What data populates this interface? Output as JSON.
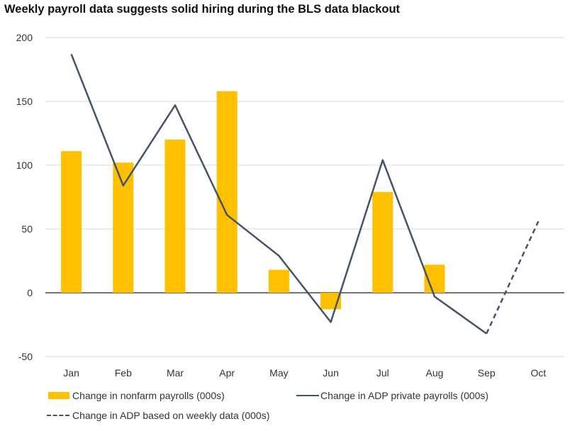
{
  "chart_data": {
    "type": "bar+line",
    "title": "Weekly payroll data suggests solid hiring during the BLS data blackout",
    "categories": [
      "Jan",
      "Feb",
      "Mar",
      "Apr",
      "May",
      "Jun",
      "Jul",
      "Aug",
      "Sep",
      "Oct"
    ],
    "ylim": [
      -50,
      200
    ],
    "yticks": [
      -50,
      0,
      50,
      100,
      150,
      200
    ],
    "grid": true,
    "legend_placement": "bottom",
    "series": [
      {
        "name": "Change in nonfarm payrolls (000s)",
        "type": "bar",
        "color": "#FFC000",
        "values": [
          111,
          102,
          120,
          158,
          18,
          -13,
          79,
          22,
          null,
          null
        ]
      },
      {
        "name": "Change in ADP private payrolls (000s)",
        "type": "line",
        "color": "#44546A",
        "values": [
          187,
          84,
          147,
          61,
          29,
          -23,
          104,
          -3,
          -32,
          null
        ]
      },
      {
        "name": "Change in ADP based on weekly data (000s)",
        "type": "dashed-line",
        "color": "#44546A",
        "values": [
          null,
          null,
          null,
          null,
          null,
          null,
          null,
          null,
          -32,
          56
        ]
      }
    ]
  }
}
